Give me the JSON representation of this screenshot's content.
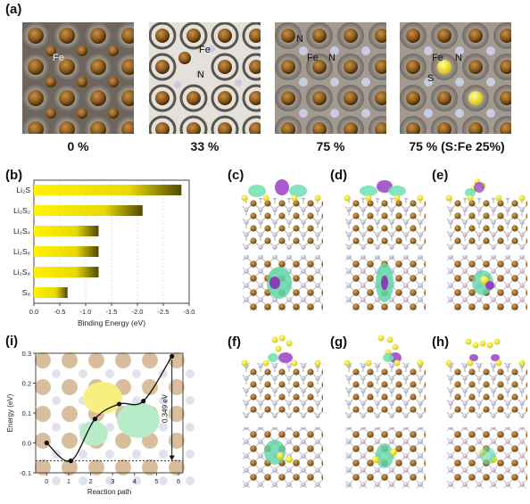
{
  "panel_a": {
    "label": "(a)",
    "tiles": [
      {
        "caption": "0 %",
        "labels": [
          "Fe"
        ]
      },
      {
        "caption": "33 %",
        "labels": [
          "Fe",
          "N"
        ]
      },
      {
        "caption": "75 %",
        "labels": [
          "N",
          "Fe",
          "N"
        ]
      },
      {
        "caption": "75 % (S:Fe 25%)",
        "labels": [
          "Fe",
          "N",
          "S"
        ]
      }
    ]
  },
  "panel_b_label": "(b)",
  "panel_i_label": "(i)",
  "side_panels": [
    "(c)",
    "(d)",
    "(e)",
    "(f)",
    "(g)",
    "(h)"
  ],
  "colors": {
    "fe_brown": "#8b5a1c",
    "n_gray": "#b9bbd6",
    "s_yellow": "#f2e21a",
    "charge_green": "#5fd6a8",
    "charge_purple": "#9a3fc2",
    "bar_dark": "#6b6300",
    "bar_bright": "#fff200"
  },
  "chart_data": [
    {
      "type": "bar",
      "orientation": "horizontal",
      "categories": [
        "Li₂S",
        "Li₂S₂",
        "Li₂S₄",
        "Li₂S₆",
        "Li₂S₈",
        "S₈"
      ],
      "values": [
        -2.85,
        -2.1,
        -1.25,
        -1.25,
        -1.25,
        -0.65
      ],
      "xlabel": "Binding Energy (eV)",
      "xlim": [
        0,
        -3.0
      ],
      "xticks": [
        "0.0",
        "-0.5",
        "-1.0",
        "-1.5",
        "-2.0",
        "-2.5",
        "-3.0"
      ],
      "grid": true
    },
    {
      "type": "line",
      "x": [
        0,
        1.1,
        2.2,
        3.3,
        4.4,
        5.7
      ],
      "y": [
        0.0,
        -0.06,
        0.08,
        0.13,
        0.14,
        0.29
      ],
      "xlabel": "Reaction path",
      "ylabel": "Energy (eV)",
      "xlim": [
        -0.5,
        6.2
      ],
      "ylim": [
        -0.1,
        0.3
      ],
      "xticks": [
        "0",
        "1",
        "2",
        "3",
        "4",
        "5",
        "6"
      ],
      "yticks": [
        "-0.1",
        "0.0",
        "0.1",
        "0.2",
        "0.3"
      ],
      "baseline": -0.06,
      "annotation": "0.349 eV"
    }
  ]
}
